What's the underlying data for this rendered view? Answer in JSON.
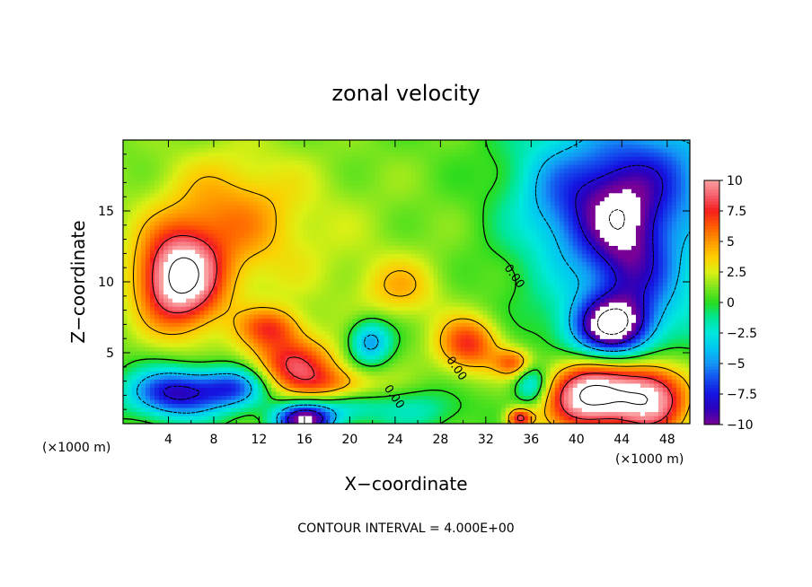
{
  "chart_data": {
    "type": "heatmap",
    "title": "zonal velocity",
    "xlabel": "X−coordinate",
    "ylabel": "Z−coordinate",
    "x_unit_label": "(×1000 m)",
    "y_unit_label": "(×1000 m)",
    "xlim": [
      0,
      50
    ],
    "ylim": [
      0,
      20
    ],
    "x_ticks": [
      4,
      8,
      12,
      16,
      20,
      24,
      28,
      32,
      36,
      40,
      44,
      48
    ],
    "x_tick_labels": [
      "4",
      "8",
      "12",
      "16",
      "20",
      "24",
      "28",
      "32",
      "36",
      "40",
      "44",
      "48"
    ],
    "y_ticks": [
      5,
      10,
      15
    ],
    "y_tick_labels": [
      "5",
      "10",
      "15"
    ],
    "footer": "CONTOUR INTERVAL = 4.000E+00",
    "colorbar": {
      "min": -10,
      "max": 10,
      "tick_values": [
        10,
        7.5,
        5,
        2.5,
        0,
        -2.5,
        -5,
        -7.5,
        -10
      ],
      "tick_labels": [
        "10",
        "7.5",
        "5",
        "2.5",
        "0",
        "−2.5",
        "−5",
        "−7.5",
        "−10"
      ]
    },
    "contour_labels": [
      {
        "text": "0.00",
        "x": 33.6,
        "y": 11.0
      },
      {
        "text": "0.00",
        "x": 28.5,
        "y": 4.5
      },
      {
        "text": "0.00",
        "x": 23.0,
        "y": 2.5
      }
    ],
    "features": [
      {
        "x": 5.0,
        "z": 10.2,
        "amp": 11,
        "sx": 2.5,
        "sz": 2.4
      },
      {
        "x": 4.8,
        "z": 2.2,
        "amp": -9.5,
        "sx": 3.0,
        "sz": 1.2
      },
      {
        "x": 10.0,
        "z": 2.6,
        "amp": -6.0,
        "sx": 2.0,
        "sz": 1.0
      },
      {
        "x": 15.0,
        "z": 4.3,
        "amp": 6.5,
        "sx": 2.6,
        "sz": 1.3
      },
      {
        "x": 18.5,
        "z": 2.8,
        "amp": 4.0,
        "sx": 3.0,
        "sz": 0.9
      },
      {
        "x": 13.0,
        "z": 6.8,
        "amp": 5.0,
        "sx": 2.0,
        "sz": 1.0
      },
      {
        "x": 16.0,
        "z": 0.3,
        "amp": -12.0,
        "sx": 1.8,
        "sz": 0.8
      },
      {
        "x": 21.8,
        "z": 5.8,
        "amp": -6.0,
        "sx": 1.3,
        "sz": 1.1
      },
      {
        "x": 30.5,
        "z": 5.6,
        "amp": 6.5,
        "sx": 2.0,
        "sz": 1.4
      },
      {
        "x": 34.5,
        "z": 4.3,
        "amp": 5.0,
        "sx": 1.2,
        "sz": 0.7
      },
      {
        "x": 24.5,
        "z": 9.6,
        "amp": 3.0,
        "sx": 2.5,
        "sz": 1.5
      },
      {
        "x": 9.5,
        "z": 14.8,
        "amp": 3.0,
        "sx": 4.0,
        "sz": 3.0
      },
      {
        "x": 43.0,
        "z": 6.8,
        "amp": -11.0,
        "sx": 2.4,
        "sz": 1.5
      },
      {
        "x": 43.5,
        "z": 14.5,
        "amp": -6.5,
        "sx": 3.0,
        "sz": 2.5
      },
      {
        "x": 45.0,
        "z": 10.5,
        "amp": -5.0,
        "sx": 2.5,
        "sz": 2.5
      },
      {
        "x": 41.0,
        "z": 2.0,
        "amp": 11.5,
        "sx": 2.6,
        "sz": 1.7
      },
      {
        "x": 46.5,
        "z": 1.8,
        "amp": 10.0,
        "sx": 2.4,
        "sz": 1.8
      },
      {
        "x": 35.0,
        "z": 0.4,
        "amp": 8.0,
        "sx": 0.8,
        "sz": 0.5
      },
      {
        "x": 36.0,
        "z": 2.8,
        "amp": -5.0,
        "sx": 1.0,
        "sz": 1.0
      },
      {
        "x": 46.0,
        "z": 17.5,
        "amp": -4.0,
        "sx": 4.0,
        "sz": 2.5
      },
      {
        "x": 38.0,
        "z": 16.0,
        "amp": -3.0,
        "sx": 3.0,
        "sz": 3.0
      },
      {
        "x": 20.0,
        "z": 1.2,
        "amp": -3.0,
        "sx": 2.0,
        "sz": 0.8
      },
      {
        "x": 26.0,
        "z": 1.0,
        "amp": -2.5,
        "sx": 3.0,
        "sz": 1.0
      }
    ],
    "background": {
      "base": 0.8,
      "upper_left_boost": 1.5,
      "right_side_drop": -3.0
    }
  }
}
